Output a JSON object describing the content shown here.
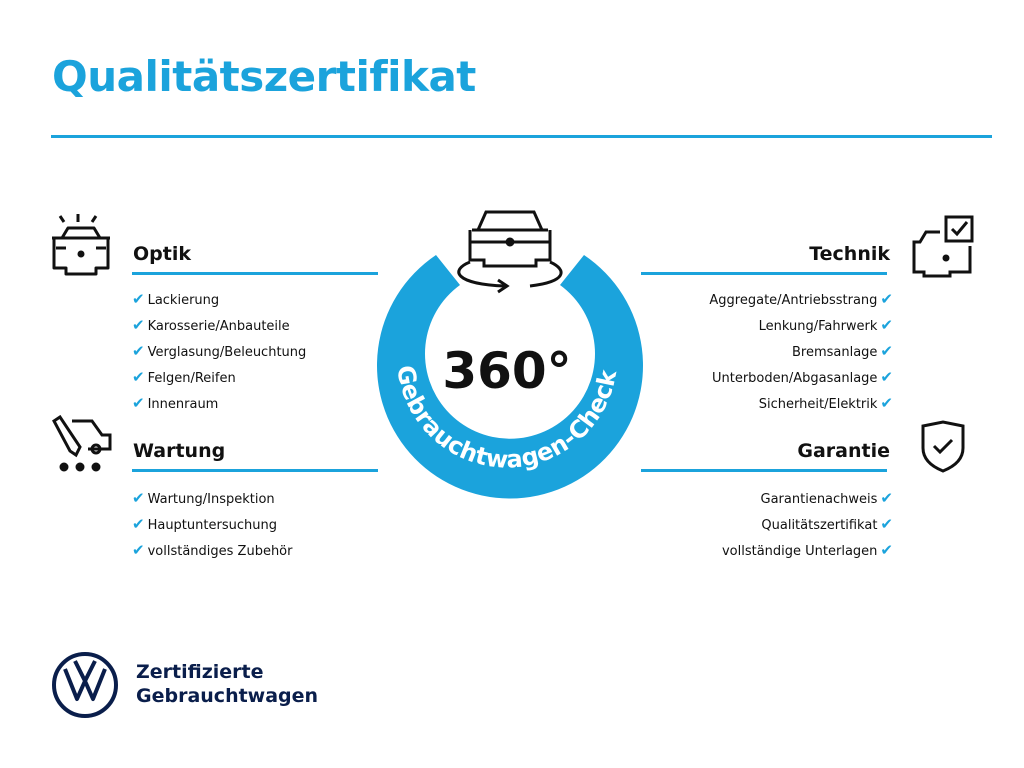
{
  "title": "Qualitätszertifikat",
  "center": {
    "number": "360°",
    "arc_text": "Gebrauchtwagen-Check"
  },
  "accent": "#1ba3dc",
  "sections": {
    "optik": {
      "heading": "Optik",
      "items": [
        "Lackierung",
        "Karosserie/Anbauteile",
        "Verglasung/Beleuchtung",
        "Felgen/Reifen",
        "Innenraum"
      ]
    },
    "wartung": {
      "heading": "Wartung",
      "items": [
        "Wartung/Inspektion",
        "Hauptuntersuchung",
        "vollständiges Zubehör"
      ]
    },
    "technik": {
      "heading": "Technik",
      "items": [
        "Aggregate/Antriebsstrang",
        "Lenkung/Fahrwerk",
        "Bremsanlage",
        "Unterboden/Abgasanlage",
        "Sicherheit/Elektrik"
      ]
    },
    "garantie": {
      "heading": "Garantie",
      "items": [
        "Garantienachweis",
        "Qualitätszertifikat",
        "vollständige Unterlagen"
      ]
    }
  },
  "check_glyph": "✔",
  "brand": {
    "line1": "Zertifizierte",
    "line2": "Gebrauchtwagen"
  }
}
